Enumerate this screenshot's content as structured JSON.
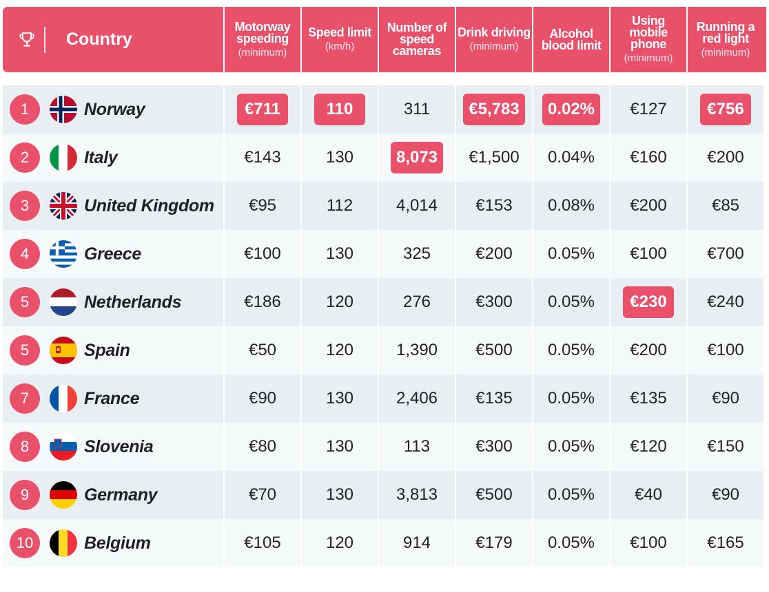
{
  "header": {
    "country": "Country",
    "icon": "trophy-icon",
    "columns": [
      {
        "main": "Motorway speeding",
        "sub": "(minimum)"
      },
      {
        "main": "Speed limit",
        "sub": "(km/h)"
      },
      {
        "main": "Number of speed cameras",
        "sub": ""
      },
      {
        "main": "Drink driving",
        "sub": "(minimum)"
      },
      {
        "main": "Alcohol blood limit",
        "sub": ""
      },
      {
        "main": "Using mobile phone",
        "sub": "(minimum)"
      },
      {
        "main": "Running a red light",
        "sub": "(minimum)"
      }
    ]
  },
  "colors": {
    "accent": "#e9506a",
    "row_odd": "#e8eef1",
    "row_even": "#f6f9fa"
  },
  "rows": [
    {
      "rank": "1",
      "country": "Norway",
      "flag": "norway-flag",
      "values": [
        "€711",
        "110",
        "311",
        "€5,783",
        "0.02%",
        "€127",
        "€756"
      ],
      "highlight": [
        true,
        true,
        false,
        true,
        true,
        false,
        true
      ]
    },
    {
      "rank": "2",
      "country": "Italy",
      "flag": "italy-flag",
      "values": [
        "€143",
        "130",
        "8,073",
        "€1,500",
        "0.04%",
        "€160",
        "€200"
      ],
      "highlight": [
        false,
        false,
        true,
        false,
        false,
        false,
        false
      ]
    },
    {
      "rank": "3",
      "country": "United Kingdom",
      "flag": "uk-flag",
      "values": [
        "€95",
        "112",
        "4,014",
        "€153",
        "0.08%",
        "€200",
        "€85"
      ],
      "highlight": [
        false,
        false,
        false,
        false,
        false,
        false,
        false
      ]
    },
    {
      "rank": "4",
      "country": "Greece",
      "flag": "greece-flag",
      "values": [
        "€100",
        "130",
        "325",
        "€200",
        "0.05%",
        "€100",
        "€700"
      ],
      "highlight": [
        false,
        false,
        false,
        false,
        false,
        false,
        false
      ]
    },
    {
      "rank": "5",
      "country": "Netherlands",
      "flag": "netherlands-flag",
      "values": [
        "€186",
        "120",
        "276",
        "€300",
        "0.05%",
        "€230",
        "€240"
      ],
      "highlight": [
        false,
        false,
        false,
        false,
        false,
        true,
        false
      ]
    },
    {
      "rank": "5",
      "country": "Spain",
      "flag": "spain-flag",
      "values": [
        "€50",
        "120",
        "1,390",
        "€500",
        "0.05%",
        "€200",
        "€100"
      ],
      "highlight": [
        false,
        false,
        false,
        false,
        false,
        false,
        false
      ]
    },
    {
      "rank": "7",
      "country": "France",
      "flag": "france-flag",
      "values": [
        "€90",
        "130",
        "2,406",
        "€135",
        "0.05%",
        "€135",
        "€90"
      ],
      "highlight": [
        false,
        false,
        false,
        false,
        false,
        false,
        false
      ]
    },
    {
      "rank": "8",
      "country": "Slovenia",
      "flag": "slovenia-flag",
      "values": [
        "€80",
        "130",
        "113",
        "€300",
        "0.05%",
        "€120",
        "€150"
      ],
      "highlight": [
        false,
        false,
        false,
        false,
        false,
        false,
        false
      ]
    },
    {
      "rank": "9",
      "country": "Germany",
      "flag": "germany-flag",
      "values": [
        "€70",
        "130",
        "3,813",
        "€500",
        "0.05%",
        "€40",
        "€90"
      ],
      "highlight": [
        false,
        false,
        false,
        false,
        false,
        false,
        false
      ]
    },
    {
      "rank": "10",
      "country": "Belgium",
      "flag": "belgium-flag",
      "values": [
        "€105",
        "120",
        "914",
        "€179",
        "0.05%",
        "€100",
        "€165"
      ],
      "highlight": [
        false,
        false,
        false,
        false,
        false,
        false,
        false
      ]
    }
  ]
}
